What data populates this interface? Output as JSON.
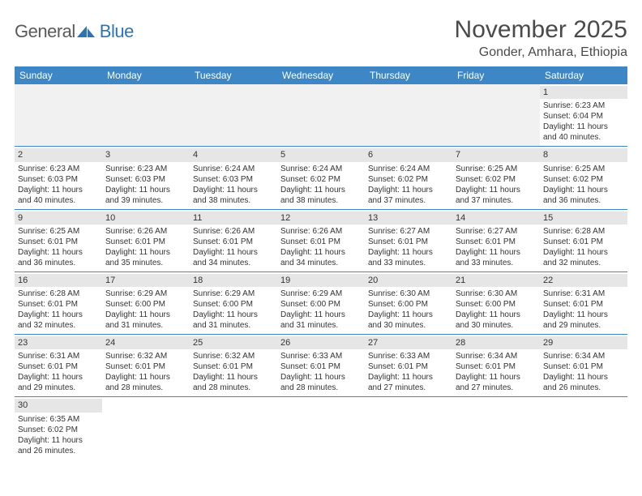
{
  "logo": {
    "general": "General",
    "blue": "Blue"
  },
  "title": {
    "month": "November 2025",
    "location": "Gonder, Amhara, Ethiopia"
  },
  "colors": {
    "header_bg": "#3d87c7",
    "header_text": "#ffffff",
    "daynum_bg": "#e6e6e6",
    "empty_bg": "#f1f1f1",
    "row_border": "#3d87c7",
    "body_text": "#333333",
    "title_text": "#4a4a4a",
    "logo_gray": "#5a5a5a",
    "logo_blue": "#2e74b5"
  },
  "dayNames": [
    "Sunday",
    "Monday",
    "Tuesday",
    "Wednesday",
    "Thursday",
    "Friday",
    "Saturday"
  ],
  "weeks": [
    [
      {
        "empty": true
      },
      {
        "empty": true
      },
      {
        "empty": true
      },
      {
        "empty": true
      },
      {
        "empty": true
      },
      {
        "empty": true
      },
      {
        "n": "1",
        "sr": "Sunrise: 6:23 AM",
        "ss": "Sunset: 6:04 PM",
        "d1": "Daylight: 11 hours",
        "d2": "and 40 minutes."
      }
    ],
    [
      {
        "n": "2",
        "sr": "Sunrise: 6:23 AM",
        "ss": "Sunset: 6:03 PM",
        "d1": "Daylight: 11 hours",
        "d2": "and 40 minutes."
      },
      {
        "n": "3",
        "sr": "Sunrise: 6:23 AM",
        "ss": "Sunset: 6:03 PM",
        "d1": "Daylight: 11 hours",
        "d2": "and 39 minutes."
      },
      {
        "n": "4",
        "sr": "Sunrise: 6:24 AM",
        "ss": "Sunset: 6:03 PM",
        "d1": "Daylight: 11 hours",
        "d2": "and 38 minutes."
      },
      {
        "n": "5",
        "sr": "Sunrise: 6:24 AM",
        "ss": "Sunset: 6:02 PM",
        "d1": "Daylight: 11 hours",
        "d2": "and 38 minutes."
      },
      {
        "n": "6",
        "sr": "Sunrise: 6:24 AM",
        "ss": "Sunset: 6:02 PM",
        "d1": "Daylight: 11 hours",
        "d2": "and 37 minutes."
      },
      {
        "n": "7",
        "sr": "Sunrise: 6:25 AM",
        "ss": "Sunset: 6:02 PM",
        "d1": "Daylight: 11 hours",
        "d2": "and 37 minutes."
      },
      {
        "n": "8",
        "sr": "Sunrise: 6:25 AM",
        "ss": "Sunset: 6:02 PM",
        "d1": "Daylight: 11 hours",
        "d2": "and 36 minutes."
      }
    ],
    [
      {
        "n": "9",
        "sr": "Sunrise: 6:25 AM",
        "ss": "Sunset: 6:01 PM",
        "d1": "Daylight: 11 hours",
        "d2": "and 36 minutes."
      },
      {
        "n": "10",
        "sr": "Sunrise: 6:26 AM",
        "ss": "Sunset: 6:01 PM",
        "d1": "Daylight: 11 hours",
        "d2": "and 35 minutes."
      },
      {
        "n": "11",
        "sr": "Sunrise: 6:26 AM",
        "ss": "Sunset: 6:01 PM",
        "d1": "Daylight: 11 hours",
        "d2": "and 34 minutes."
      },
      {
        "n": "12",
        "sr": "Sunrise: 6:26 AM",
        "ss": "Sunset: 6:01 PM",
        "d1": "Daylight: 11 hours",
        "d2": "and 34 minutes."
      },
      {
        "n": "13",
        "sr": "Sunrise: 6:27 AM",
        "ss": "Sunset: 6:01 PM",
        "d1": "Daylight: 11 hours",
        "d2": "and 33 minutes."
      },
      {
        "n": "14",
        "sr": "Sunrise: 6:27 AM",
        "ss": "Sunset: 6:01 PM",
        "d1": "Daylight: 11 hours",
        "d2": "and 33 minutes."
      },
      {
        "n": "15",
        "sr": "Sunrise: 6:28 AM",
        "ss": "Sunset: 6:01 PM",
        "d1": "Daylight: 11 hours",
        "d2": "and 32 minutes."
      }
    ],
    [
      {
        "n": "16",
        "sr": "Sunrise: 6:28 AM",
        "ss": "Sunset: 6:01 PM",
        "d1": "Daylight: 11 hours",
        "d2": "and 32 minutes."
      },
      {
        "n": "17",
        "sr": "Sunrise: 6:29 AM",
        "ss": "Sunset: 6:00 PM",
        "d1": "Daylight: 11 hours",
        "d2": "and 31 minutes."
      },
      {
        "n": "18",
        "sr": "Sunrise: 6:29 AM",
        "ss": "Sunset: 6:00 PM",
        "d1": "Daylight: 11 hours",
        "d2": "and 31 minutes."
      },
      {
        "n": "19",
        "sr": "Sunrise: 6:29 AM",
        "ss": "Sunset: 6:00 PM",
        "d1": "Daylight: 11 hours",
        "d2": "and 31 minutes."
      },
      {
        "n": "20",
        "sr": "Sunrise: 6:30 AM",
        "ss": "Sunset: 6:00 PM",
        "d1": "Daylight: 11 hours",
        "d2": "and 30 minutes."
      },
      {
        "n": "21",
        "sr": "Sunrise: 6:30 AM",
        "ss": "Sunset: 6:00 PM",
        "d1": "Daylight: 11 hours",
        "d2": "and 30 minutes."
      },
      {
        "n": "22",
        "sr": "Sunrise: 6:31 AM",
        "ss": "Sunset: 6:01 PM",
        "d1": "Daylight: 11 hours",
        "d2": "and 29 minutes."
      }
    ],
    [
      {
        "n": "23",
        "sr": "Sunrise: 6:31 AM",
        "ss": "Sunset: 6:01 PM",
        "d1": "Daylight: 11 hours",
        "d2": "and 29 minutes."
      },
      {
        "n": "24",
        "sr": "Sunrise: 6:32 AM",
        "ss": "Sunset: 6:01 PM",
        "d1": "Daylight: 11 hours",
        "d2": "and 28 minutes."
      },
      {
        "n": "25",
        "sr": "Sunrise: 6:32 AM",
        "ss": "Sunset: 6:01 PM",
        "d1": "Daylight: 11 hours",
        "d2": "and 28 minutes."
      },
      {
        "n": "26",
        "sr": "Sunrise: 6:33 AM",
        "ss": "Sunset: 6:01 PM",
        "d1": "Daylight: 11 hours",
        "d2": "and 28 minutes."
      },
      {
        "n": "27",
        "sr": "Sunrise: 6:33 AM",
        "ss": "Sunset: 6:01 PM",
        "d1": "Daylight: 11 hours",
        "d2": "and 27 minutes."
      },
      {
        "n": "28",
        "sr": "Sunrise: 6:34 AM",
        "ss": "Sunset: 6:01 PM",
        "d1": "Daylight: 11 hours",
        "d2": "and 27 minutes."
      },
      {
        "n": "29",
        "sr": "Sunrise: 6:34 AM",
        "ss": "Sunset: 6:01 PM",
        "d1": "Daylight: 11 hours",
        "d2": "and 26 minutes."
      }
    ],
    [
      {
        "n": "30",
        "sr": "Sunrise: 6:35 AM",
        "ss": "Sunset: 6:02 PM",
        "d1": "Daylight: 11 hours",
        "d2": "and 26 minutes."
      },
      {
        "empty": true
      },
      {
        "empty": true
      },
      {
        "empty": true
      },
      {
        "empty": true
      },
      {
        "empty": true
      },
      {
        "empty": true
      }
    ]
  ]
}
